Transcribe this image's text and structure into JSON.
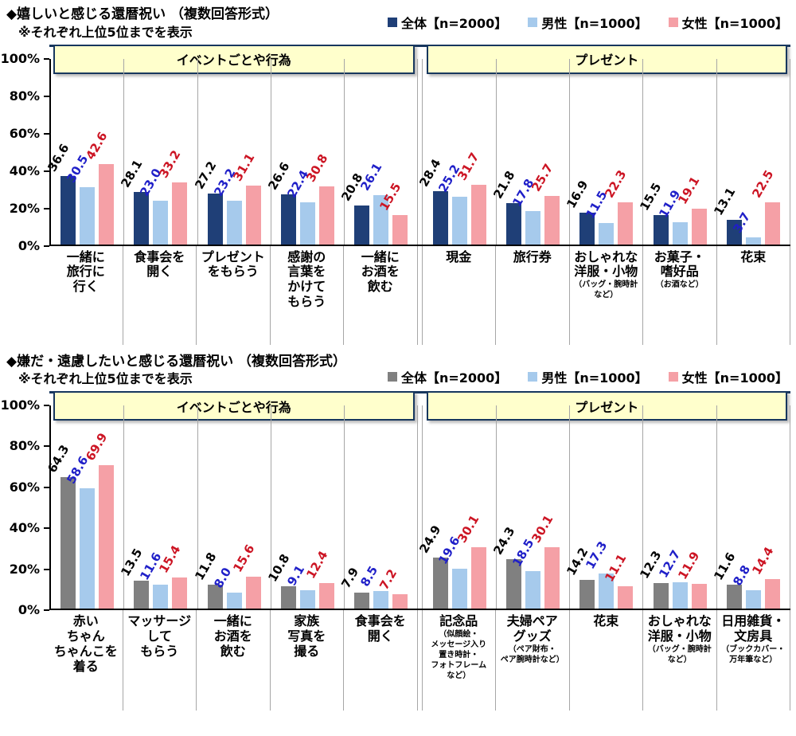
{
  "colors": {
    "band_border": "#17375E",
    "group_header_bg": "#FFFFCC",
    "grid_line": "#A6A6A6",
    "axis_line": "#000000"
  },
  "chart_data": [
    {
      "type": "bar",
      "title": "◆嬉しいと感じる還暦祝い （複数回答形式）",
      "subtitle": "※それぞれ上位5位までを表示",
      "ylim": [
        0,
        100
      ],
      "unit": "%",
      "grid": false,
      "legend_position": "top-right",
      "yticks": [
        {
          "label": "0%",
          "value": 0
        },
        {
          "label": "20%",
          "value": 20
        },
        {
          "label": "40%",
          "value": 40
        },
        {
          "label": "60%",
          "value": 60
        },
        {
          "label": "80%",
          "value": 80
        },
        {
          "label": "100%",
          "value": 100
        }
      ],
      "legend": [
        {
          "label": "全体【n=2000】",
          "color": "#1F3F77"
        },
        {
          "label": "男性【n=1000】",
          "color": "#A6CAEC"
        },
        {
          "label": "女性【n=1000】",
          "color": "#F5A0A6"
        }
      ],
      "label_colors": [
        "#000000",
        "#1F1FC8",
        "#CC1423"
      ],
      "groups": [
        {
          "label": "イベントごとや行為",
          "categories": [
            {
              "label_lines": [
                "一緒に",
                "旅行に",
                "行く"
              ],
              "values": [
                36.6,
                30.5,
                42.6
              ]
            },
            {
              "label_lines": [
                "食事会を",
                "開く"
              ],
              "values": [
                28.1,
                23.0,
                33.2
              ]
            },
            {
              "label_lines": [
                "プレゼント",
                "をもらう"
              ],
              "values": [
                27.2,
                23.2,
                31.1
              ]
            },
            {
              "label_lines": [
                "感謝の",
                "言葉を",
                "かけて",
                "もらう"
              ],
              "values": [
                26.6,
                22.4,
                30.8
              ]
            },
            {
              "label_lines": [
                "一緒に",
                "お酒を",
                "飲む"
              ],
              "values": [
                20.8,
                26.1,
                15.5
              ]
            }
          ]
        },
        {
          "label": "プレゼント",
          "categories": [
            {
              "label_lines": [
                "現金"
              ],
              "values": [
                28.4,
                25.2,
                31.7
              ]
            },
            {
              "label_lines": [
                "旅行券"
              ],
              "values": [
                21.8,
                17.8,
                25.7
              ]
            },
            {
              "label_lines": [
                "おしゃれな",
                "洋服・小物"
              ],
              "note_lines": [
                "（バッグ・腕時計",
                "など）"
              ],
              "values": [
                16.9,
                11.5,
                22.3
              ]
            },
            {
              "label_lines": [
                "お菓子・",
                "嗜好品"
              ],
              "note_lines": [
                "（お酒など）"
              ],
              "values": [
                15.5,
                11.9,
                19.1
              ]
            },
            {
              "label_lines": [
                "花束"
              ],
              "values": [
                13.1,
                3.7,
                22.5
              ]
            }
          ]
        }
      ]
    },
    {
      "type": "bar",
      "title": "◆嫌だ・遠慮したいと感じる還暦祝い （複数回答形式）",
      "subtitle": "※それぞれ上位5位までを表示",
      "ylim": [
        0,
        100
      ],
      "unit": "%",
      "grid": false,
      "legend_position": "top-right",
      "yticks": [
        {
          "label": "0%",
          "value": 0
        },
        {
          "label": "20%",
          "value": 20
        },
        {
          "label": "40%",
          "value": 40
        },
        {
          "label": "60%",
          "value": 60
        },
        {
          "label": "80%",
          "value": 80
        },
        {
          "label": "100%",
          "value": 100
        }
      ],
      "legend": [
        {
          "label": "全体【n=2000】",
          "color": "#808080"
        },
        {
          "label": "男性【n=1000】",
          "color": "#A6CAEC"
        },
        {
          "label": "女性【n=1000】",
          "color": "#F5A0A6"
        }
      ],
      "label_colors": [
        "#000000",
        "#1F1FC8",
        "#CC1423"
      ],
      "groups": [
        {
          "label": "イベントごとや行為",
          "categories": [
            {
              "label_lines": [
                "赤い",
                "ちゃん",
                "ちゃんこを",
                "着る"
              ],
              "values": [
                64.3,
                58.6,
                69.9
              ]
            },
            {
              "label_lines": [
                "マッサージ",
                "して",
                "もらう"
              ],
              "values": [
                13.5,
                11.6,
                15.4
              ]
            },
            {
              "label_lines": [
                "一緒に",
                "お酒を",
                "飲む"
              ],
              "values": [
                11.8,
                8.0,
                15.6
              ]
            },
            {
              "label_lines": [
                "家族",
                "写真を",
                "撮る"
              ],
              "values": [
                10.8,
                9.1,
                12.4
              ]
            },
            {
              "label_lines": [
                "食事会を",
                "開く"
              ],
              "values": [
                7.9,
                8.5,
                7.2
              ]
            }
          ]
        },
        {
          "label": "プレゼント",
          "categories": [
            {
              "label_lines": [
                "記念品"
              ],
              "note_lines": [
                "（似顔絵・",
                "メッセージ入り",
                "置き時計・",
                "フォトフレーム",
                "など）"
              ],
              "values": [
                24.9,
                19.6,
                30.1
              ]
            },
            {
              "label_lines": [
                "夫婦ペア",
                "グッズ"
              ],
              "note_lines": [
                "（ペア財布・",
                "ペア腕時計など）"
              ],
              "values": [
                24.3,
                18.5,
                30.1
              ]
            },
            {
              "label_lines": [
                "花束"
              ],
              "values": [
                14.2,
                17.3,
                11.1
              ]
            },
            {
              "label_lines": [
                "おしゃれな",
                "洋服・小物"
              ],
              "note_lines": [
                "（バッグ・腕時計",
                "など）"
              ],
              "values": [
                12.3,
                12.7,
                11.9
              ]
            },
            {
              "label_lines": [
                "日用雑貨・",
                "文房具"
              ],
              "note_lines": [
                "（ブックカバー・",
                "万年筆など）"
              ],
              "values": [
                11.6,
                8.8,
                14.4
              ]
            }
          ]
        }
      ]
    }
  ]
}
